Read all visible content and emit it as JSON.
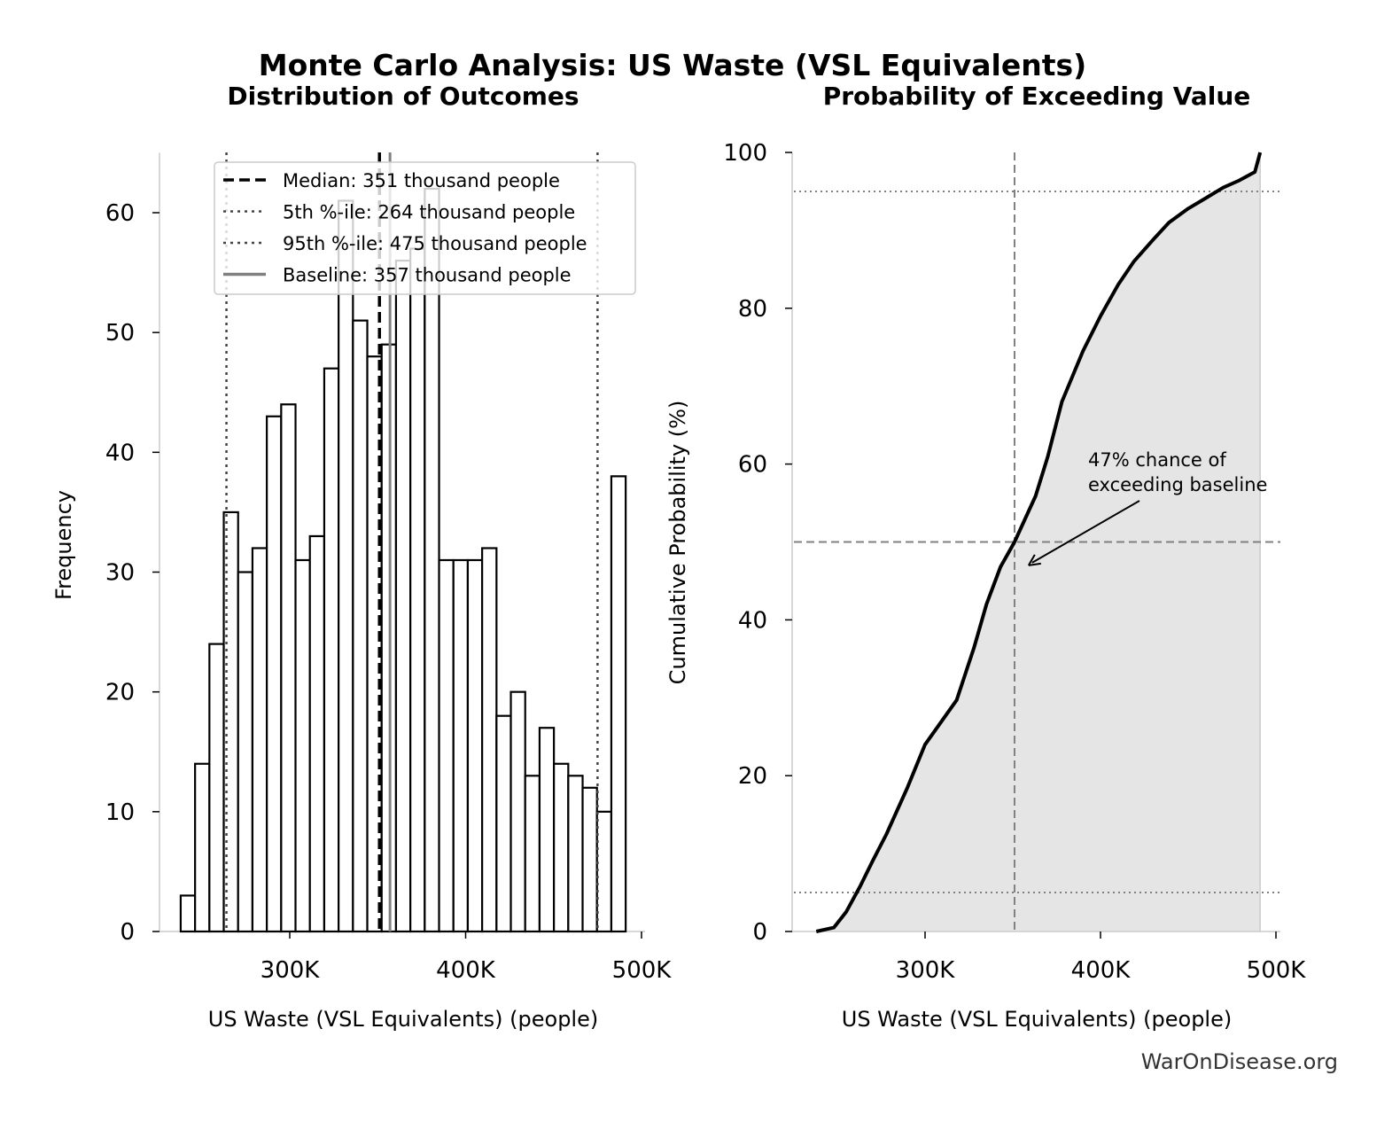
{
  "title": "Monte Carlo Analysis: US Waste (VSL Equivalents)",
  "watermark": "WarOnDisease.org",
  "chart_data": [
    {
      "type": "bar",
      "title": "Distribution of Outcomes",
      "xlabel": "US Waste (VSL Equivalents) (people)",
      "ylabel": "Frequency",
      "xlim": [
        225000,
        505000
      ],
      "ylim": [
        0,
        65
      ],
      "xticks": [
        {
          "value": 300000,
          "label": "300K"
        },
        {
          "value": 400000,
          "label": "400K"
        },
        {
          "value": 500000,
          "label": "500K"
        }
      ],
      "yticks": [
        {
          "value": 0,
          "label": "0"
        },
        {
          "value": 10,
          "label": "10"
        },
        {
          "value": 20,
          "label": "20"
        },
        {
          "value": 30,
          "label": "30"
        },
        {
          "value": 40,
          "label": "40"
        },
        {
          "value": 50,
          "label": "50"
        },
        {
          "value": 60,
          "label": "60"
        }
      ],
      "bin_start": 238000,
      "bin_end": 491000,
      "values": [
        3,
        14,
        24,
        35,
        30,
        32,
        43,
        44,
        31,
        33,
        47,
        61,
        51,
        48,
        49,
        56,
        57,
        62,
        31,
        31,
        31,
        32,
        18,
        20,
        13,
        17,
        14,
        13,
        12,
        10,
        38
      ],
      "bar_fill": "#ffffff",
      "bar_edge": "#000000",
      "grid": false,
      "legend_position": "top-right",
      "reference_lines": [
        {
          "label": "Median: 351 thousand people",
          "value": 351000,
          "style": "dashed",
          "color": "#000000"
        },
        {
          "label": "5th %-ile: 264 thousand people",
          "value": 264000,
          "style": "dotted",
          "color": "#444444"
        },
        {
          "label": "95th %-ile: 475 thousand people",
          "value": 475000,
          "style": "dotted",
          "color": "#444444"
        },
        {
          "label": "Baseline: 357 thousand people",
          "value": 357000,
          "style": "solid",
          "color": "#808080"
        }
      ]
    },
    {
      "type": "area",
      "title": "Probability of Exceeding Value",
      "xlabel": "US Waste (VSL Equivalents) (people)",
      "ylabel": "Cumulative Probability (%)",
      "xlim": [
        225000,
        505000
      ],
      "ylim": [
        0,
        100
      ],
      "xticks": [
        {
          "value": 300000,
          "label": "300K"
        },
        {
          "value": 400000,
          "label": "400K"
        },
        {
          "value": 500000,
          "label": "500K"
        }
      ],
      "yticks": [
        {
          "value": 0,
          "label": "0"
        },
        {
          "value": 20,
          "label": "20"
        },
        {
          "value": 40,
          "label": "40"
        },
        {
          "value": 60,
          "label": "60"
        },
        {
          "value": 80,
          "label": "80"
        },
        {
          "value": 100,
          "label": "100"
        }
      ],
      "x": [
        238000,
        248000,
        255000,
        263000,
        270000,
        278000,
        290000,
        300000,
        318000,
        328000,
        335000,
        343000,
        351000,
        363000,
        370000,
        378000,
        390000,
        400000,
        410000,
        419000,
        430000,
        439000,
        450000,
        459000,
        470000,
        479000,
        488000,
        491000
      ],
      "y": [
        0,
        0.5,
        2.5,
        5.8,
        9,
        12.5,
        18.5,
        24,
        29.7,
        36.5,
        42,
        46.8,
        50,
        55.9,
        61,
        68,
        74.5,
        79,
        83,
        86,
        88.8,
        91,
        92.8,
        94,
        95.5,
        96.4,
        97.5,
        100
      ],
      "fill": "#e5e5e5",
      "line_color": "#000000",
      "grid": false,
      "reference_lines": [
        {
          "axis": "x",
          "value": 351000,
          "style": "dashed",
          "color": "#808080"
        },
        {
          "axis": "y",
          "value": 50,
          "style": "dashed",
          "color": "#808080"
        },
        {
          "axis": "y",
          "value": 5,
          "style": "dotted",
          "color": "#808080"
        },
        {
          "axis": "y",
          "value": 95,
          "style": "dotted",
          "color": "#808080"
        }
      ],
      "annotation": {
        "text_lines": [
          "47% chance of",
          "exceeding baseline"
        ],
        "point": [
          359000,
          47
        ]
      }
    }
  ]
}
